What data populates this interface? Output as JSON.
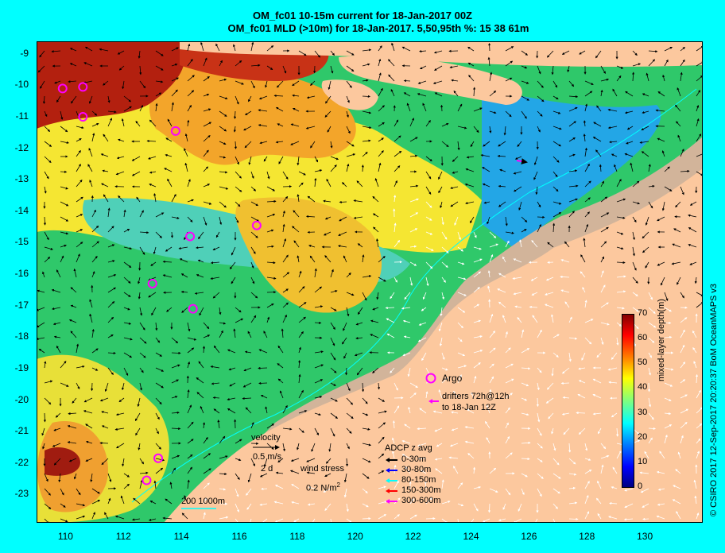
{
  "header": {
    "title_line1": "OM_fc01 10-15m current for 18-Jan-2017 00Z",
    "title_line2": "OM_fc01 MLD (>10m) for 18-Jan-2017. 5,50,95th %: 15  38  61m"
  },
  "axes": {
    "lon_ticks": [
      "110",
      "112",
      "114",
      "116",
      "118",
      "120",
      "122",
      "124",
      "126",
      "128",
      "130"
    ],
    "lat_ticks": [
      "-9",
      "-10",
      "-11",
      "-12",
      "-13",
      "-14",
      "-15",
      "-16",
      "-17",
      "-18",
      "-19",
      "-20",
      "-21",
      "-22",
      "-23"
    ],
    "lon_range": [
      109,
      132
    ],
    "lat_range": [
      -23.9,
      -8.6
    ]
  },
  "colorbar": {
    "label": "mixed-layer depth(m)",
    "ticks": [
      "70",
      "60",
      "50",
      "40",
      "30",
      "20",
      "10",
      "0"
    ],
    "range": [
      0,
      70
    ],
    "colors": [
      "#00007f",
      "#0000ff",
      "#007fff",
      "#00ffff",
      "#7fff7f",
      "#ffff00",
      "#ff7f00",
      "#ff0000",
      "#7f0000"
    ]
  },
  "legend": {
    "argo_label": "Argo",
    "drifters_line1": "drifters 72h@12h",
    "drifters_line2": "to 18-Jan 12Z",
    "velocity_title": "velocity",
    "velocity_scale": "0.5 m/s",
    "velocity_time": "2 d",
    "wind_title": "wind stress",
    "wind_value": "0.2 N/m",
    "wind_sup": "2",
    "adcp_title": "ADCP z avg",
    "adcp_items": [
      {
        "label": "0-30m",
        "color": "#000000"
      },
      {
        "label": "30-80m",
        "color": "#0000ff"
      },
      {
        "label": "80-150m",
        "color": "#00ffff"
      },
      {
        "label": "150-300m",
        "color": "#ff0000"
      },
      {
        "label": "300-600m",
        "color": "#ff00ff"
      }
    ],
    "bathy_label": "200  1000m"
  },
  "credit": "© CSIRO 2017   12-Sep-2017 20:20:37 BoM OceanMAPS v3",
  "argo_floats": [
    {
      "lon": 109.9,
      "lat": -10.1
    },
    {
      "lon": 110.6,
      "lat": -10.05
    },
    {
      "lon": 110.6,
      "lat": -11.0
    },
    {
      "lon": 113.8,
      "lat": -11.45
    },
    {
      "lon": 114.3,
      "lat": -14.8
    },
    {
      "lon": 116.6,
      "lat": -14.45
    },
    {
      "lon": 113.0,
      "lat": -16.3
    },
    {
      "lon": 114.4,
      "lat": -17.1
    },
    {
      "lon": 113.2,
      "lat": -21.85
    },
    {
      "lon": 112.8,
      "lat": -22.55
    }
  ]
}
